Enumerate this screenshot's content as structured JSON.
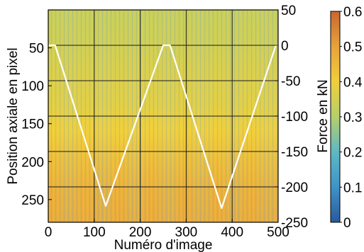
{
  "chart_data": {
    "type": "heatmap",
    "x": {
      "label": "Numéro d'image",
      "range": [
        0,
        500
      ],
      "ticks": [
        0,
        100,
        200,
        300,
        400,
        500
      ]
    },
    "y_left": {
      "label": "Position axiale en pixel",
      "range": [
        0,
        280
      ],
      "reversed": true,
      "ticks": [
        50,
        100,
        150,
        200,
        250
      ]
    },
    "y_right": {
      "label": "Force en kN",
      "range": [
        -250,
        50
      ],
      "ticks": [
        50,
        0,
        -50,
        -100,
        -150,
        -200,
        -250
      ]
    },
    "colorbar": {
      "range": [
        0,
        0.6
      ],
      "ticks": [
        0.6,
        0.5,
        0.4,
        0.3,
        0.2,
        0.1,
        0
      ],
      "colormap": [
        "#2a5a9c",
        "#3f93c8",
        "#5fb8c4",
        "#b6cf6a",
        "#f0cf3c",
        "#e7a23c",
        "#c9672f"
      ]
    },
    "grid": true,
    "heatmap_rows": [
      {
        "position": 0,
        "value": 0.33
      },
      {
        "position": 40,
        "value": 0.34
      },
      {
        "position": 80,
        "value": 0.36
      },
      {
        "position": 120,
        "value": 0.37
      },
      {
        "position": 160,
        "value": 0.4
      },
      {
        "position": 200,
        "value": 0.44
      },
      {
        "position": 240,
        "value": 0.47
      },
      {
        "position": 280,
        "value": 0.48
      }
    ],
    "series": [
      {
        "axis": "right",
        "color": "#ffffff",
        "x": [
          0,
          15,
          125,
          250,
          265,
          377,
          495,
          500
        ],
        "y": [
          0,
          0,
          -227,
          0,
          0,
          -230,
          0,
          0
        ]
      }
    ]
  }
}
